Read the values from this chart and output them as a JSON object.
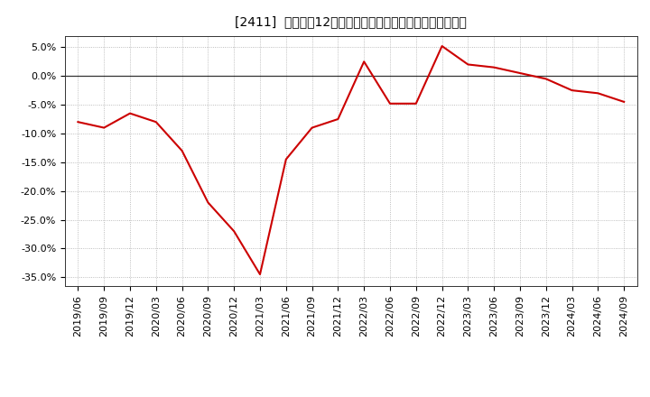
{
  "title": "[2411]  売上高の12か月移動合計の対前年同期増減率の推移",
  "line_color": "#cc0000",
  "bg_color": "#ffffff",
  "plot_bg_color": "#ffffff",
  "grid_color": "#aaaaaa",
  "dates": [
    "2019/06",
    "2019/09",
    "2019/12",
    "2020/03",
    "2020/06",
    "2020/09",
    "2020/12",
    "2021/03",
    "2021/06",
    "2021/09",
    "2021/12",
    "2022/03",
    "2022/06",
    "2022/09",
    "2022/12",
    "2023/03",
    "2023/06",
    "2023/09",
    "2023/12",
    "2024/03",
    "2024/06",
    "2024/09"
  ],
  "values": [
    -8.0,
    -9.0,
    -6.5,
    -8.0,
    -13.0,
    -22.0,
    -27.0,
    -34.5,
    -14.5,
    -9.0,
    -7.5,
    2.5,
    -4.8,
    -4.8,
    5.2,
    2.0,
    1.5,
    0.5,
    -0.5,
    -2.5,
    -3.0,
    -4.5
  ],
  "yticks": [
    5.0,
    0.0,
    -5.0,
    -10.0,
    -15.0,
    -20.0,
    -25.0,
    -30.0,
    -35.0
  ],
  "ylim": [
    -36.5,
    7.0
  ],
  "title_fontsize": 11,
  "tick_fontsize": 8,
  "line_width": 1.5
}
